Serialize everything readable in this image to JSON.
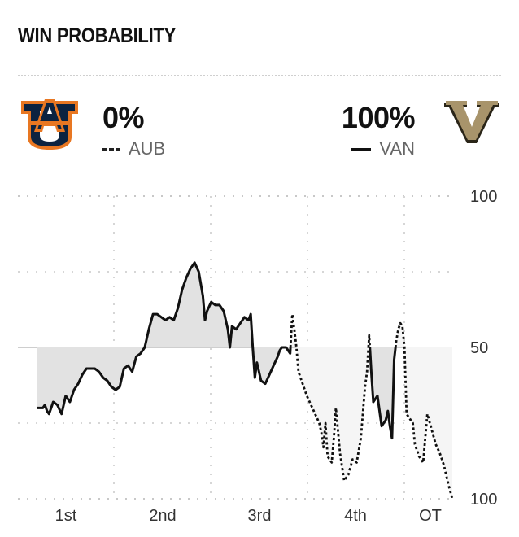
{
  "header": {
    "title": "WIN PROBABILITY"
  },
  "teams": {
    "away": {
      "abbr": "AUB",
      "pct": "0%",
      "line_style": "dashed",
      "logo_color": "#0c2340",
      "logo_accent": "#e87722"
    },
    "home": {
      "abbr": "VAN",
      "pct": "100%",
      "line_style": "solid",
      "logo_color": "#a8946b",
      "logo_dark": "#2a2518"
    }
  },
  "chart_data": {
    "type": "line",
    "title": "",
    "xlabel": "",
    "ylabel": "",
    "x_periods": [
      "1st",
      "2nd",
      "3rd",
      "4th",
      "OT"
    ],
    "y_tick_labels": [
      "100",
      "50",
      "100"
    ],
    "yrange": [
      -50,
      50
    ],
    "baseline": 0,
    "grid": true,
    "fill_colors": {
      "above": "#f5f5f5",
      "below": "#e2e2e2"
    },
    "x_range": [
      0,
      100
    ],
    "series": [
      {
        "values": [
          [
            0,
            -20
          ],
          [
            1.5,
            -20
          ],
          [
            2,
            -19
          ],
          [
            2.5,
            -21
          ],
          [
            3,
            -22
          ],
          [
            3.5,
            -20
          ],
          [
            4,
            -18
          ],
          [
            5,
            -19
          ],
          [
            6,
            -22
          ],
          [
            7,
            -16
          ],
          [
            8,
            -18
          ],
          [
            9,
            -14
          ],
          [
            10,
            -12
          ],
          [
            11,
            -9
          ],
          [
            12,
            -7
          ],
          [
            13,
            -7
          ],
          [
            14,
            -7
          ],
          [
            15,
            -8
          ],
          [
            16,
            -10
          ],
          [
            17,
            -11
          ],
          [
            18,
            -13
          ],
          [
            19,
            -14
          ],
          [
            20,
            -13
          ],
          [
            21,
            -7
          ],
          [
            22,
            -6
          ],
          [
            23,
            -8
          ],
          [
            24,
            -3
          ],
          [
            25,
            -2
          ],
          [
            26,
            0
          ],
          [
            27,
            6
          ],
          [
            28,
            11
          ],
          [
            29,
            11
          ],
          [
            30,
            10
          ],
          [
            31,
            9
          ],
          [
            32,
            10
          ],
          [
            33,
            9
          ],
          [
            34,
            13
          ],
          [
            35,
            19
          ],
          [
            36,
            23
          ],
          [
            37,
            26
          ],
          [
            38,
            28
          ],
          [
            39,
            25
          ],
          [
            40,
            17
          ],
          [
            40.5,
            9
          ],
          [
            41,
            12
          ],
          [
            42,
            15
          ],
          [
            43,
            14
          ],
          [
            44,
            14
          ],
          [
            45,
            12
          ],
          [
            46,
            6
          ],
          [
            46.5,
            0
          ],
          [
            47,
            7
          ],
          [
            48,
            6
          ],
          [
            49,
            8
          ],
          [
            50,
            10
          ],
          [
            51,
            9
          ],
          [
            51.5,
            11
          ],
          [
            52,
            0
          ],
          [
            52.5,
            -10
          ],
          [
            53,
            -5
          ],
          [
            54,
            -11
          ],
          [
            55,
            -12
          ],
          [
            56,
            -9
          ],
          [
            57,
            -6
          ],
          [
            58,
            -3
          ],
          [
            58.5,
            -1
          ],
          [
            59,
            0
          ],
          [
            60,
            0
          ],
          [
            61,
            -2
          ],
          [
            61.5,
            11
          ],
          [
            62,
            6
          ],
          [
            62.5,
            0
          ],
          [
            63,
            -8
          ],
          [
            64,
            -12
          ],
          [
            65,
            -16
          ],
          [
            66,
            -19
          ],
          [
            67,
            -22
          ],
          [
            68,
            -25
          ],
          [
            68.5,
            -28
          ],
          [
            69,
            -33
          ],
          [
            69.5,
            -25
          ],
          [
            70,
            -36
          ],
          [
            71,
            -38
          ],
          [
            71.5,
            -30
          ],
          [
            72,
            -20
          ],
          [
            73,
            -35
          ],
          [
            74,
            -44
          ],
          [
            75,
            -42
          ],
          [
            76,
            -37
          ],
          [
            77,
            -38
          ],
          [
            78,
            -30
          ],
          [
            79,
            -13
          ],
          [
            79.5,
            -8
          ],
          [
            80,
            4
          ],
          [
            80.5,
            -8
          ],
          [
            81,
            -18
          ],
          [
            82,
            -16
          ],
          [
            83,
            -26
          ],
          [
            84,
            -24
          ],
          [
            84.5,
            -21
          ],
          [
            85,
            -26
          ],
          [
            85.5,
            -30
          ],
          [
            86,
            -4
          ],
          [
            86.5,
            2
          ],
          [
            87,
            6
          ],
          [
            87.5,
            8
          ],
          [
            88,
            7
          ],
          [
            88.5,
            0
          ],
          [
            89,
            -22
          ],
          [
            90,
            -24
          ],
          [
            90.5,
            -25
          ],
          [
            91,
            -32
          ],
          [
            92,
            -36
          ],
          [
            93,
            -38
          ],
          [
            94,
            -22
          ],
          [
            95,
            -27
          ],
          [
            96,
            -32
          ],
          [
            97,
            -35
          ],
          [
            98,
            -39
          ],
          [
            99,
            -45
          ],
          [
            100,
            -50
          ]
        ]
      }
    ]
  }
}
